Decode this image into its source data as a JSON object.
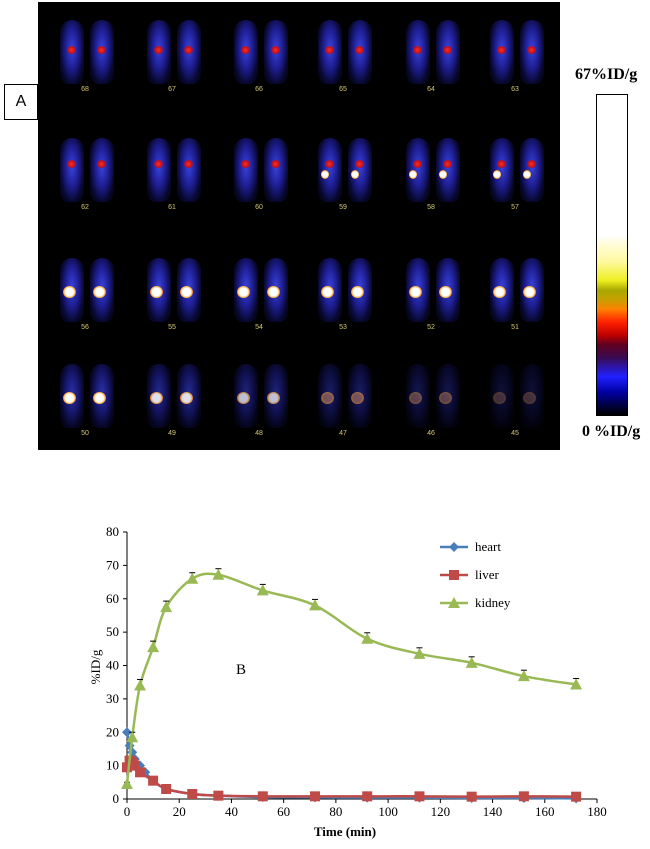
{
  "panel_a": {
    "label": "A",
    "scale_max_label": "67%ID/g",
    "scale_min_label": "0 %ID/g",
    "frame_numbers": [
      "68",
      "67",
      "66",
      "65",
      "64",
      "63",
      "62",
      "61",
      "60",
      "59",
      "58",
      "57",
      "56",
      "55",
      "54",
      "53",
      "52",
      "51",
      "50",
      "49",
      "48",
      "47",
      "46",
      "45"
    ]
  },
  "chart_data": {
    "type": "line",
    "annotation": "B",
    "xlabel": "Time (min)",
    "ylabel": "%ID/g",
    "xlim": [
      0,
      180
    ],
    "ylim": [
      0,
      80
    ],
    "xticks": [
      0,
      20,
      40,
      60,
      80,
      100,
      120,
      140,
      160,
      180
    ],
    "yticks": [
      0,
      10,
      20,
      30,
      40,
      50,
      60,
      70,
      80
    ],
    "legend_position": "top-right",
    "grid": false,
    "series": [
      {
        "name": "heart",
        "color": "#4a7ebb",
        "marker": "diamond",
        "x": [
          0,
          1,
          2,
          3,
          5,
          7,
          10,
          15,
          25,
          35,
          52,
          72,
          92,
          112,
          132,
          152,
          172
        ],
        "y": [
          20,
          16,
          14,
          12,
          10,
          8,
          5.5,
          3,
          1.5,
          1,
          0.6,
          0.5,
          0.4,
          0.4,
          0.3,
          0.3,
          0.2
        ]
      },
      {
        "name": "liver",
        "color": "#be4b48",
        "marker": "square",
        "x": [
          0,
          1,
          2,
          3,
          5,
          10,
          15,
          25,
          35,
          52,
          72,
          92,
          112,
          132,
          152,
          172
        ],
        "y": [
          9.5,
          11.5,
          11,
          10,
          8,
          5.5,
          3,
          1.5,
          1,
          0.8,
          0.8,
          0.8,
          0.8,
          0.7,
          0.8,
          0.7
        ]
      },
      {
        "name": "kidney",
        "color": "#98b954",
        "marker": "triangle",
        "x": [
          0,
          2,
          5,
          10,
          15,
          25,
          35,
          52,
          72,
          92,
          112,
          132,
          152,
          172
        ],
        "y": [
          4.5,
          18.5,
          34,
          45.5,
          57.5,
          66,
          67.2,
          62.5,
          58,
          48,
          43.5,
          40.8,
          36.8,
          34.3
        ],
        "err": [
          0.5,
          1.5,
          1.8,
          1.8,
          1.8,
          1.8,
          1.8,
          1.8,
          1.8,
          1.8,
          1.8,
          1.8,
          1.8,
          1.8
        ]
      }
    ]
  }
}
